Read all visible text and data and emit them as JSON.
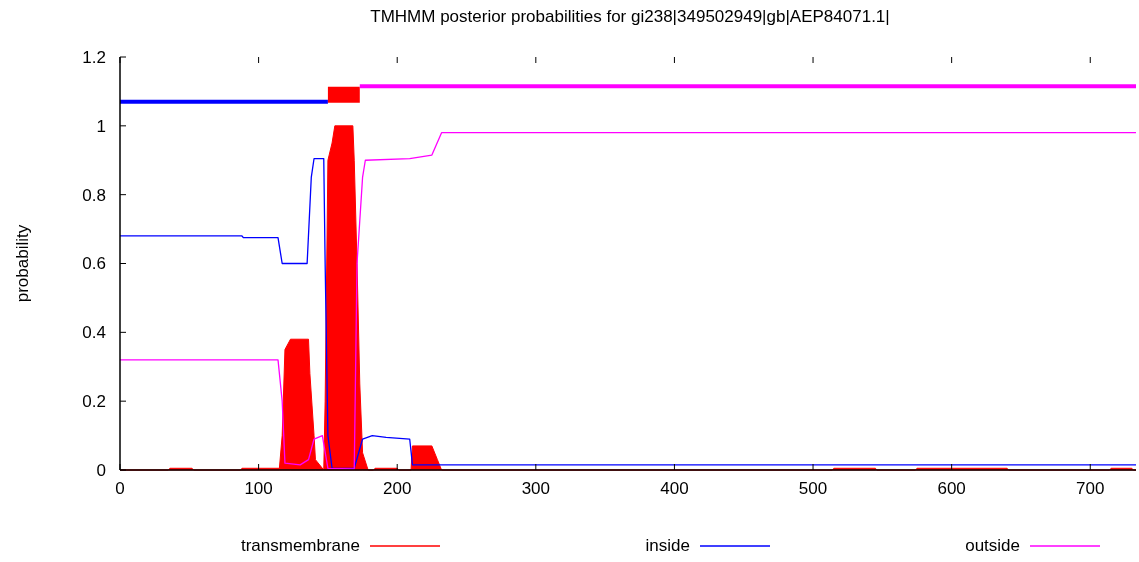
{
  "chart_data": {
    "type": "line",
    "title": "TMHMM posterior probabilities for gi238|349502949|gb|AEP84071.1|",
    "ylabel": "probability",
    "xlim": [
      0,
      733
    ],
    "ylim": [
      0,
      1.2
    ],
    "xticks": [
      0,
      100,
      200,
      300,
      400,
      500,
      600,
      700
    ],
    "yticks": [
      0,
      0.2,
      0.4,
      0.6,
      0.8,
      1,
      1.2
    ],
    "grid": false,
    "legend": "bottom",
    "series": [
      {
        "name": "transmembrane",
        "type": "area",
        "color": "#ff0000",
        "x": [
          0,
          35,
          36,
          52,
          53,
          87,
          88,
          115,
          117,
          119,
          123,
          136,
          137,
          140,
          141,
          147,
          148,
          150,
          153,
          155,
          168,
          169,
          171,
          173,
          175,
          179,
          183,
          184,
          200,
          201,
          210,
          211,
          225,
          229,
          232,
          514,
          515,
          545,
          546,
          574,
          575,
          640,
          641,
          714,
          715,
          730,
          731,
          733
        ],
        "values": [
          0,
          0,
          0.005,
          0.005,
          0,
          0,
          0.005,
          0.005,
          0.1,
          0.35,
          0.38,
          0.38,
          0.28,
          0.1,
          0.03,
          0,
          0.2,
          0.9,
          0.95,
          1,
          1,
          0.9,
          0.6,
          0.25,
          0.05,
          0,
          0,
          0.005,
          0.005,
          0,
          0,
          0.07,
          0.07,
          0.03,
          0,
          0,
          0.005,
          0.005,
          0,
          0,
          0.005,
          0.005,
          0,
          0,
          0.005,
          0.005,
          0,
          0
        ]
      },
      {
        "name": "inside",
        "color": "#0000ff",
        "x": [
          0,
          88,
          89,
          114,
          117,
          135,
          138,
          140,
          147,
          148,
          150,
          153,
          169,
          175,
          182,
          192,
          209,
          211,
          733
        ],
        "values": [
          0.68,
          0.68,
          0.675,
          0.675,
          0.6,
          0.6,
          0.85,
          0.905,
          0.905,
          0.6,
          0.1,
          0.005,
          0.005,
          0.09,
          0.1,
          0.095,
          0.09,
          0.015,
          0.015
        ]
      },
      {
        "name": "outside",
        "color": "#ff00ff",
        "x": [
          0,
          114,
          117,
          119,
          130,
          136,
          140,
          146,
          150,
          169,
          171,
          175,
          177,
          209,
          217,
          225,
          232,
          733
        ],
        "values": [
          0.32,
          0.32,
          0.2,
          0.02,
          0.015,
          0.03,
          0.09,
          0.1,
          0.005,
          0.003,
          0.6,
          0.85,
          0.9,
          0.905,
          0.91,
          0.915,
          0.98,
          0.98
        ]
      },
      {
        "color": "#0000ff",
        "x": [
          0,
          150
        ],
        "values": [
          1.07,
          1.07
        ]
      },
      {
        "color": "#ff0000",
        "x": [
          150,
          173
        ],
        "values": [
          1.09,
          1.09
        ]
      },
      {
        "color": "#ff00ff",
        "x": [
          173,
          733
        ],
        "values": [
          1.115,
          1.115
        ]
      }
    ]
  }
}
